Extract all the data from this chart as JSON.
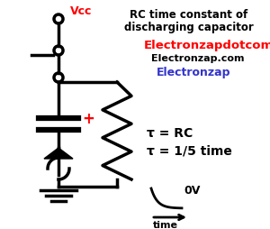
{
  "title_line1": "RC time constant of",
  "title_line2": "discharging capacitor",
  "brand1": "Electronzapdotcom",
  "brand2": "Electronzap.com",
  "brand3": "Electronzap",
  "eq1": "τ = RC",
  "eq2": "τ = 1/5 time",
  "label_0v": "0V",
  "label_time": "time",
  "label_vcc": "Vcc",
  "bg_color": "#ffffff",
  "title_color": "#000000",
  "brand1_color": "#ff0000",
  "brand2_color": "#000000",
  "brand3_color": "#3333cc",
  "circuit_color": "#000000",
  "plus_color": "#ff0000",
  "eq_color": "#000000",
  "time_color": "#000000"
}
